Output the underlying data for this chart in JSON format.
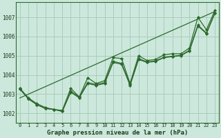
{
  "bg_color": "#cce8dc",
  "grid_color": "#aaccbb",
  "line_color": "#2d6a2d",
  "marker_color": "#2d6a2d",
  "title": "Graphe pression niveau de la mer (hPa)",
  "ylim": [
    1001.5,
    1007.8
  ],
  "xlim": [
    -0.5,
    23.5
  ],
  "yticks": [
    1002,
    1003,
    1004,
    1005,
    1006,
    1007
  ],
  "xticks": [
    0,
    1,
    2,
    3,
    4,
    5,
    6,
    7,
    8,
    9,
    10,
    11,
    12,
    13,
    14,
    15,
    16,
    17,
    18,
    19,
    20,
    21,
    22,
    23
  ],
  "series": [
    {
      "x": [
        0,
        1,
        2,
        3,
        4,
        5,
        6,
        7,
        8,
        9,
        10,
        11,
        12,
        13,
        14,
        15,
        16,
        17,
        18,
        19,
        20,
        21,
        22,
        23
      ],
      "y": [
        1003.3,
        1002.8,
        1002.5,
        1002.3,
        1002.2,
        1002.15,
        1003.3,
        1002.85,
        1003.85,
        1003.55,
        1003.7,
        1004.9,
        1004.85,
        1003.55,
        1005.0,
        1004.75,
        1004.8,
        1005.05,
        1005.1,
        1005.1,
        1005.4,
        1007.0,
        1006.35,
        1007.35
      ],
      "marker": true
    },
    {
      "x": [
        0,
        23
      ],
      "y": [
        1002.8,
        1007.3
      ],
      "marker": false
    },
    {
      "x": [
        0,
        1,
        2,
        3,
        4,
        5,
        6,
        7,
        8,
        9,
        10,
        11,
        12,
        13,
        14,
        15,
        16,
        17,
        18,
        19,
        20,
        21,
        22,
        23
      ],
      "y": [
        1003.3,
        1002.75,
        1002.45,
        1002.25,
        1002.2,
        1002.1,
        1003.1,
        1002.8,
        1003.55,
        1003.45,
        1003.55,
        1004.65,
        1004.55,
        1003.45,
        1004.8,
        1004.65,
        1004.7,
        1004.9,
        1004.95,
        1005.0,
        1005.25,
        1006.55,
        1006.15,
        1007.2
      ],
      "marker": true
    },
    {
      "x": [
        0,
        1,
        2,
        3,
        4,
        5,
        6,
        7,
        8,
        9,
        10,
        11,
        12,
        13,
        14,
        15,
        16,
        17,
        18,
        19,
        20,
        21,
        22,
        23
      ],
      "y": [
        1003.25,
        1002.75,
        1002.45,
        1002.25,
        1002.2,
        1002.1,
        1003.15,
        1002.85,
        1003.6,
        1003.5,
        1003.6,
        1004.7,
        1004.6,
        1003.5,
        1004.85,
        1004.68,
        1004.72,
        1004.92,
        1004.97,
        1005.02,
        1005.28,
        1006.6,
        1006.18,
        1007.22
      ],
      "marker": true
    }
  ]
}
